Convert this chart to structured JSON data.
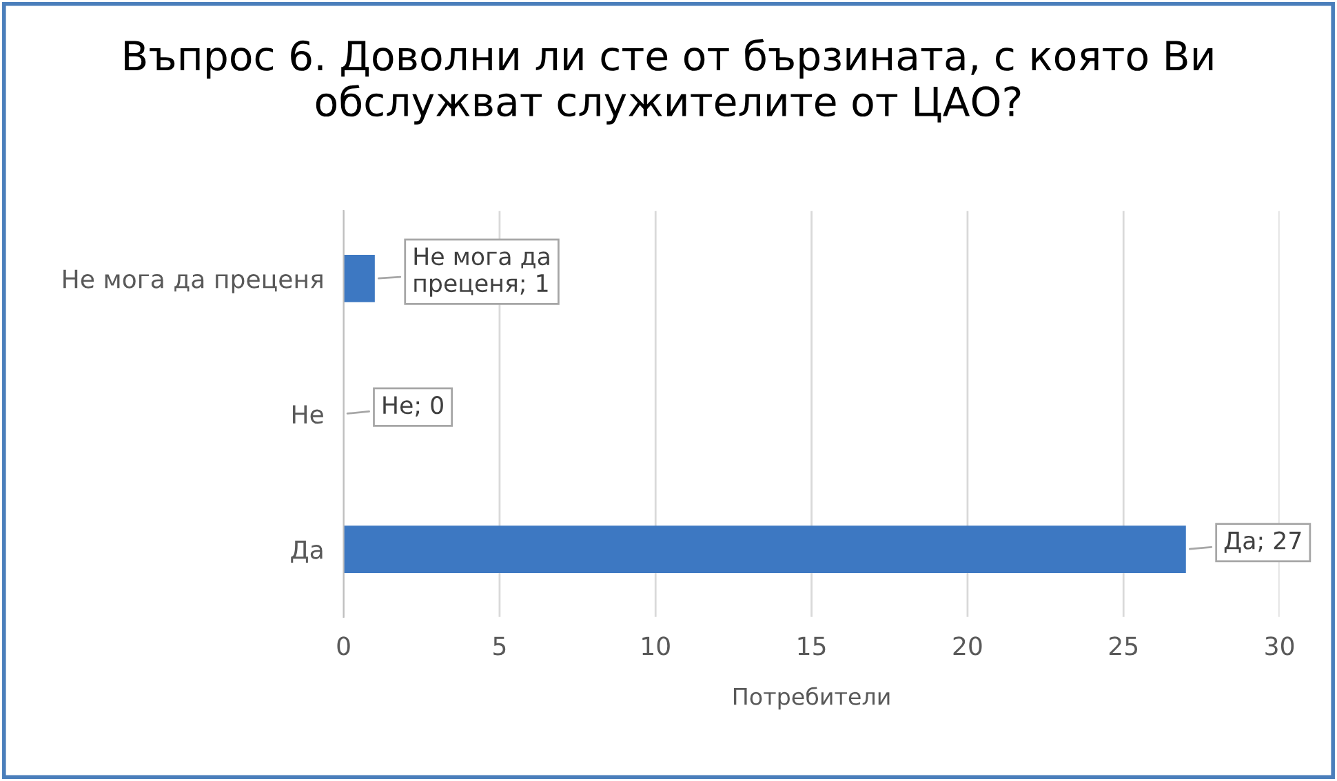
{
  "chart_data": {
    "type": "bar",
    "orientation": "horizontal",
    "title": "Въпрос 6. Доволни ли сте от бързината, с която Ви обслужват служителите от ЦАО?",
    "xlabel": "Потребители",
    "categories": [
      "Не мога да преценя",
      "Не",
      "Да"
    ],
    "values": [
      1,
      0,
      27
    ],
    "value_labels": [
      "Не мога да преценя; 1",
      "Не; 0",
      "Да; 27"
    ],
    "color": "#3d78c2",
    "xlim": [
      0,
      30
    ],
    "xticks": [
      0,
      5,
      10,
      15,
      20,
      25,
      30
    ],
    "grid": "x",
    "legend": false
  }
}
